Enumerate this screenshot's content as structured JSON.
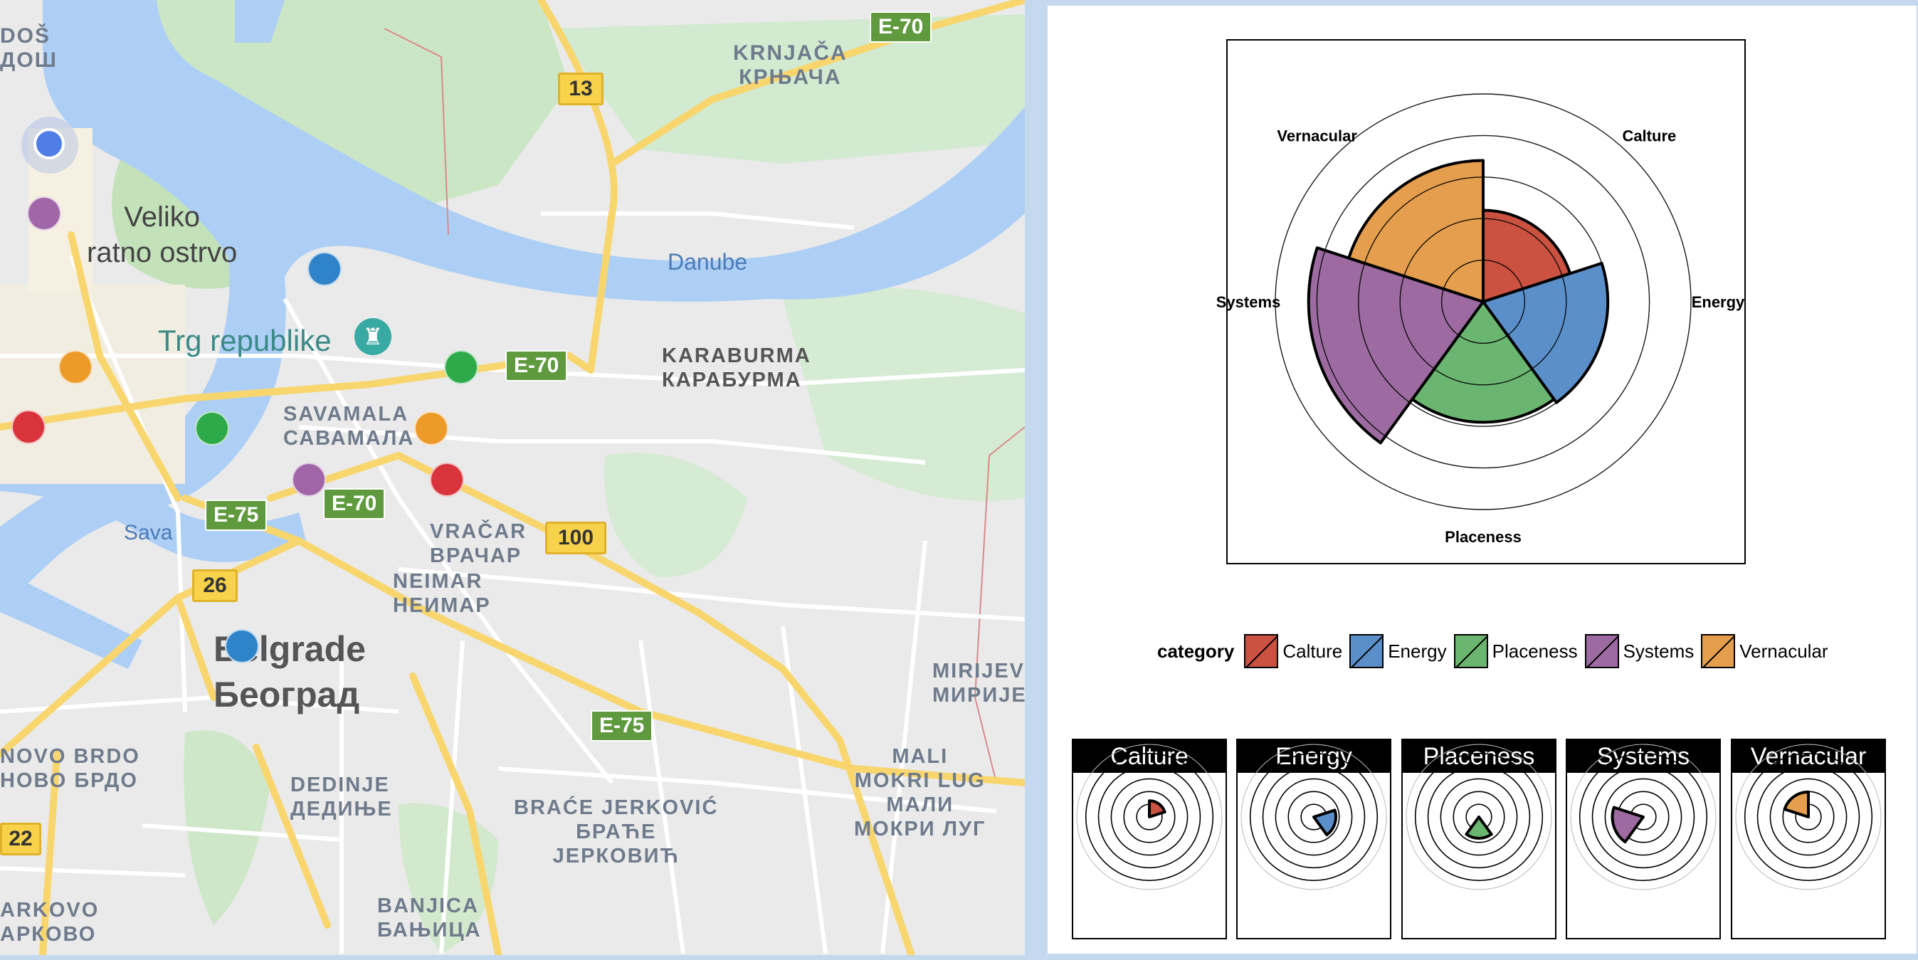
{
  "map": {
    "river_labels": [
      "Danube",
      "Sava"
    ],
    "places": [
      {
        "id": "veliko",
        "text": "Veliko\nratno ostrvo"
      },
      {
        "id": "trg",
        "text": "Trg republike"
      },
      {
        "id": "belgrade",
        "text": "Belgrade\nБеоград"
      }
    ],
    "districts": [
      {
        "id": "dos",
        "text": "DOŠ\nДОШ"
      },
      {
        "id": "krnjaca",
        "text": "KRNJAČA\nКРЊАЧА"
      },
      {
        "id": "karaburma",
        "text": "KARABURMA\nКАРАБУРМА"
      },
      {
        "id": "savamala",
        "text": "SAVAMALA\nСАВАМАЛА"
      },
      {
        "id": "vracar",
        "text": "VRAČAR\nВРАЧАР"
      },
      {
        "id": "neimar",
        "text": "NEIMAR\nНЕИМАР"
      },
      {
        "id": "novobrdo",
        "text": "NOVO BRDO\nНОВО БРДО"
      },
      {
        "id": "dedinje",
        "text": "DEDINJE\nДЕДИЊЕ"
      },
      {
        "id": "brace",
        "text": "BRAĆE JERKOVIĆ\nБРАЋЕ\nЈЕРКОВИЋ"
      },
      {
        "id": "mirijevo",
        "text": "MIRIJEV\nМИРИЈЕ"
      },
      {
        "id": "mali",
        "text": "MALI\nMOKRI LUG\nМАЛИ\nМОКРИ ЛУГ"
      },
      {
        "id": "banjica",
        "text": "BANJICA\nБАЊИЦА"
      },
      {
        "id": "arkovo",
        "text": "ARKOVO\nАРКОВО"
      }
    ],
    "road_shields": {
      "r13": "13",
      "r100": "100",
      "r26": "26",
      "r22": "22",
      "e70a": "E-70",
      "e70b": "E-70",
      "e70c": "E-70",
      "e75a": "E-75",
      "e75b": "E-75"
    },
    "markers": [
      {
        "category": "location",
        "color": "#4f7fe6"
      },
      {
        "category": "Systems",
        "color": "#a066a8"
      },
      {
        "category": "Energy",
        "color": "#2f83c9"
      },
      {
        "category": "Vernacular",
        "color": "#ec9a28"
      },
      {
        "category": "Placeness",
        "color": "#2eaa4a"
      },
      {
        "category": "Calture",
        "color": "#d9343b"
      },
      {
        "category": "Placeness",
        "color": "#2eaa4a"
      },
      {
        "category": "Vernacular",
        "color": "#ec9a28"
      },
      {
        "category": "Systems",
        "color": "#a066a8"
      },
      {
        "category": "Calture",
        "color": "#d9343b"
      },
      {
        "category": "Energy",
        "color": "#2f83c9"
      }
    ],
    "colors": {
      "water": "#aecff5",
      "green": "#cbe6c4",
      "land": "#eaeaea",
      "road": "#f8d66d",
      "street": "#ffffff"
    }
  },
  "chart_data": [
    {
      "type": "polar-bar",
      "axis_labels": [
        "Calture",
        "Energy",
        "Placeness",
        "Systems",
        "Vernacular"
      ],
      "rlim": [
        0,
        5
      ],
      "grid": true,
      "series": [
        {
          "values": [
            2.2,
            3.0,
            2.9,
            4.2,
            3.4
          ]
        }
      ]
    },
    {
      "type": "legend",
      "title": "category",
      "entries": [
        {
          "name": "Calture",
          "color": "#cb5141"
        },
        {
          "name": "Energy",
          "color": "#5b8fc9"
        },
        {
          "name": "Placeness",
          "color": "#6ab570"
        },
        {
          "name": "Systems",
          "color": "#9d6ba1"
        },
        {
          "name": "Vernacular",
          "color": "#e59e4d"
        }
      ]
    },
    {
      "type": "polar-bar-facets",
      "facets": [
        {
          "name": "Calture",
          "value": 2.2,
          "color": "#cb5141"
        },
        {
          "name": "Energy",
          "value": 3.0,
          "color": "#5b8fc9"
        },
        {
          "name": "Placeness",
          "value": 2.9,
          "color": "#6ab570"
        },
        {
          "name": "Systems",
          "value": 4.2,
          "color": "#9d6ba1"
        },
        {
          "name": "Vernacular",
          "value": 3.4,
          "color": "#e59e4d"
        }
      ],
      "rlim": [
        0,
        5
      ]
    }
  ]
}
